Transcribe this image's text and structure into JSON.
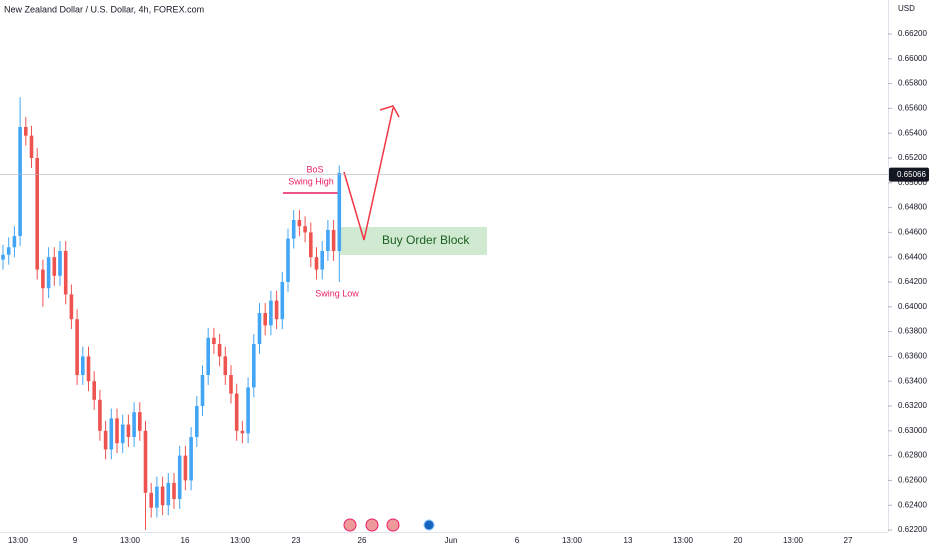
{
  "chart_data": {
    "type": "candlestick",
    "title": "New Zealand Dollar / U.S. Dollar, 4h, FOREX.com",
    "y_axis_label": "USD",
    "up_color": "#42a5f5",
    "down_color": "#ef5350",
    "open": [
      0.6438,
      0.6442,
      0.6448,
      0.6457,
      0.6545,
      0.6538,
      0.652,
      0.643,
      0.6415,
      0.644,
      0.6425,
      0.6445,
      0.641,
      0.639,
      0.6345,
      0.636,
      0.634,
      0.6325,
      0.63,
      0.6285,
      0.631,
      0.629,
      0.6305,
      0.6295,
      0.6315,
      0.63,
      0.625,
      0.6238,
      0.6255,
      0.624,
      0.6258,
      0.6245,
      0.628,
      0.626,
      0.6295,
      0.632,
      0.6345,
      0.6375,
      0.637,
      0.636,
      0.6345,
      0.633,
      0.63,
      0.6298,
      0.6335,
      0.637,
      0.6395,
      0.6385,
      0.6405,
      0.639,
      0.642,
      0.6455,
      0.647,
      0.6465,
      0.646,
      0.644,
      0.643,
      0.6445,
      0.6462,
      0.6445
    ],
    "high": [
      0.645,
      0.6456,
      0.6465,
      0.6569,
      0.6553,
      0.6546,
      0.6528,
      0.6438,
      0.6448,
      0.6448,
      0.6453,
      0.6453,
      0.6418,
      0.6398,
      0.6368,
      0.6368,
      0.6348,
      0.6333,
      0.6308,
      0.6318,
      0.6318,
      0.6313,
      0.6313,
      0.6323,
      0.6323,
      0.6308,
      0.6258,
      0.6263,
      0.6263,
      0.6266,
      0.6266,
      0.6288,
      0.6288,
      0.6303,
      0.6328,
      0.6353,
      0.6383,
      0.6383,
      0.6378,
      0.6368,
      0.6353,
      0.6338,
      0.6308,
      0.6343,
      0.6378,
      0.6403,
      0.6403,
      0.6413,
      0.6413,
      0.6428,
      0.6463,
      0.6478,
      0.6478,
      0.6473,
      0.6468,
      0.6448,
      0.6453,
      0.647,
      0.647,
      0.6514
    ],
    "low": [
      0.643,
      0.6434,
      0.644,
      0.6449,
      0.653,
      0.6512,
      0.6422,
      0.64,
      0.6407,
      0.6417,
      0.6417,
      0.6402,
      0.6382,
      0.6337,
      0.6337,
      0.6332,
      0.6317,
      0.6292,
      0.6277,
      0.6277,
      0.6282,
      0.6282,
      0.6287,
      0.6287,
      0.6292,
      0.622,
      0.623,
      0.623,
      0.6232,
      0.6232,
      0.6237,
      0.6237,
      0.6252,
      0.6252,
      0.6287,
      0.6312,
      0.6337,
      0.6362,
      0.6352,
      0.6337,
      0.6322,
      0.6292,
      0.629,
      0.629,
      0.6327,
      0.6362,
      0.6377,
      0.6377,
      0.6382,
      0.6382,
      0.6412,
      0.6447,
      0.6457,
      0.6452,
      0.6432,
      0.6422,
      0.6422,
      0.6437,
      0.6437,
      0.642
    ],
    "close": [
      0.6442,
      0.6448,
      0.6457,
      0.6545,
      0.6538,
      0.652,
      0.643,
      0.6415,
      0.644,
      0.6425,
      0.6445,
      0.641,
      0.639,
      0.6345,
      0.636,
      0.634,
      0.6325,
      0.63,
      0.6285,
      0.631,
      0.629,
      0.6305,
      0.6295,
      0.6315,
      0.63,
      0.625,
      0.6238,
      0.6255,
      0.624,
      0.6258,
      0.6245,
      0.628,
      0.626,
      0.6295,
      0.632,
      0.6345,
      0.6375,
      0.637,
      0.636,
      0.6345,
      0.633,
      0.63,
      0.6298,
      0.6335,
      0.637,
      0.6395,
      0.6385,
      0.6405,
      0.639,
      0.642,
      0.6455,
      0.647,
      0.6465,
      0.646,
      0.644,
      0.643,
      0.6445,
      0.6462,
      0.6445,
      0.6508
    ],
    "last_price": 0.65066,
    "x_labels": [
      "13:00",
      "9",
      "13:00",
      "16",
      "13:00",
      "23",
      "26",
      "Jun",
      "6",
      "13:00",
      "13",
      "13:00",
      "20",
      "13:00",
      "27"
    ],
    "ylim": [
      0.62184,
      0.66474
    ],
    "yticks": [
      {
        "value": 0.622,
        "label": "0.62200"
      },
      {
        "value": 0.624,
        "label": "0.62400"
      },
      {
        "value": 0.626,
        "label": "0.62600"
      },
      {
        "value": 0.628,
        "label": "0.62800"
      },
      {
        "value": 0.63,
        "label": "0.63000"
      },
      {
        "value": 0.632,
        "label": "0.63200"
      },
      {
        "value": 0.634,
        "label": "0.63400"
      },
      {
        "value": 0.636,
        "label": "0.63600"
      },
      {
        "value": 0.638,
        "label": "0.63800"
      },
      {
        "value": 0.64,
        "label": "0.64000"
      },
      {
        "value": 0.642,
        "label": "0.64200"
      },
      {
        "value": 0.644,
        "label": "0.64400"
      },
      {
        "value": 0.646,
        "label": "0.64600"
      },
      {
        "value": 0.648,
        "label": "0.64800"
      },
      {
        "value": 0.65,
        "label": "0.65000"
      },
      {
        "value": 0.652,
        "label": "0.65200"
      },
      {
        "value": 0.654,
        "label": "0.65400"
      },
      {
        "value": 0.656,
        "label": "0.65600"
      },
      {
        "value": 0.658,
        "label": "0.65800"
      },
      {
        "value": 0.66,
        "label": "0.66000"
      },
      {
        "value": 0.662,
        "label": "0.66200"
      }
    ],
    "annotations": {
      "bos": "BoS",
      "swing_high": "Swing High",
      "swing_low": "Swing Low",
      "order_block": "Buy Order Block"
    }
  }
}
